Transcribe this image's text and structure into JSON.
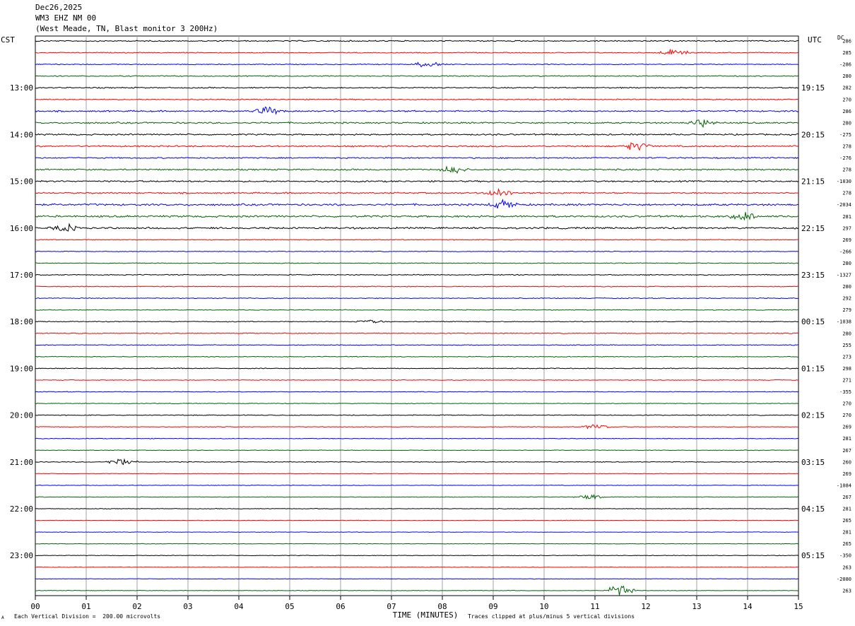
{
  "header": {
    "line1": "Dec26,2025",
    "line2": "WM3 EHZ NM 00",
    "line3": "(West Meade, TN, Blast monitor 3 200Hz)"
  },
  "left_tz": "CST",
  "right_tz": "UTC",
  "dc_label": "DC",
  "footer": {
    "scale_note": "Each Vertical Division =  200.00 microvolts",
    "clip_note": "Traces clipped at plus/minus 5 vertical divisions",
    "corner_mark": "A"
  },
  "colors": {
    "trace_cycle": [
      "#000000",
      "#ff0000",
      "#0000ff",
      "#006400"
    ],
    "grid": "#a0a0a0"
  },
  "chart_data": {
    "type": "line",
    "title": "",
    "xlabel": "TIME (MINUTES)",
    "ylabel": "",
    "x_ticks": [
      "00",
      "01",
      "02",
      "03",
      "04",
      "05",
      "06",
      "07",
      "08",
      "09",
      "10",
      "11",
      "12",
      "13",
      "14",
      "15"
    ],
    "xlim": [
      0,
      15
    ],
    "rows": 48,
    "left_hour_labels": [
      "13:00",
      "14:00",
      "15:00",
      "16:00",
      "17:00",
      "18:00",
      "19:00",
      "20:00",
      "21:00",
      "22:00",
      "23:00"
    ],
    "right_hour_labels": [
      "19:15",
      "20:15",
      "21:15",
      "22:15",
      "23:15",
      "00:15",
      "01:15",
      "02:15",
      "03:15",
      "04:15",
      "05:15"
    ],
    "hour_label_rows": [
      4,
      8,
      12,
      16,
      20,
      24,
      28,
      32,
      36,
      40,
      44
    ],
    "dc_values": [
      "286",
      "285",
      "-286",
      "280",
      "282",
      "270",
      "286",
      "280",
      "-275",
      "278",
      "-276",
      "278",
      "-1030",
      "278",
      "-2034",
      "281",
      "297",
      "269",
      "-266",
      "280",
      "-1327",
      "280",
      "292",
      "279",
      "-1038",
      "280",
      "255",
      "273",
      "298",
      "271",
      "-355",
      "270",
      "270",
      "269",
      "281",
      "267",
      "260",
      "269",
      "-1084",
      "267",
      "281",
      "265",
      "281",
      "265",
      "-350",
      "263",
      "-2080",
      "263"
    ],
    "row_amplitude": [
      0.7,
      0.55,
      0.55,
      0.6,
      0.7,
      0.65,
      0.9,
      0.9,
      0.85,
      0.9,
      0.75,
      0.85,
      0.9,
      0.9,
      1.1,
      1.1,
      1.0,
      0.5,
      0.45,
      0.45,
      0.55,
      0.5,
      0.5,
      0.45,
      0.5,
      0.5,
      0.45,
      0.45,
      0.5,
      0.45,
      0.4,
      0.4,
      0.5,
      0.4,
      0.4,
      0.35,
      0.45,
      0.3,
      0.35,
      0.35,
      0.35,
      0.3,
      0.3,
      0.3,
      0.35,
      0.3,
      0.3,
      0.3
    ],
    "events": [
      {
        "row": 1,
        "minute": 12.55,
        "amp": 6
      },
      {
        "row": 2,
        "minute": 7.7,
        "amp": 5
      },
      {
        "row": 6,
        "minute": 4.6,
        "amp": 7
      },
      {
        "row": 7,
        "minute": 13.1,
        "amp": 6
      },
      {
        "row": 9,
        "minute": 11.8,
        "amp": 7
      },
      {
        "row": 11,
        "minute": 8.2,
        "amp": 6
      },
      {
        "row": 13,
        "minute": 9.1,
        "amp": 6
      },
      {
        "row": 14,
        "minute": 9.2,
        "amp": 7
      },
      {
        "row": 15,
        "minute": 13.9,
        "amp": 7
      },
      {
        "row": 16,
        "minute": 0.6,
        "amp": 6
      },
      {
        "row": 24,
        "minute": 6.6,
        "amp": 5
      },
      {
        "row": 33,
        "minute": 11.0,
        "amp": 5
      },
      {
        "row": 36,
        "minute": 1.7,
        "amp": 6
      },
      {
        "row": 39,
        "minute": 10.9,
        "amp": 4
      },
      {
        "row": 47,
        "minute": 11.5,
        "amp": 12
      }
    ]
  }
}
